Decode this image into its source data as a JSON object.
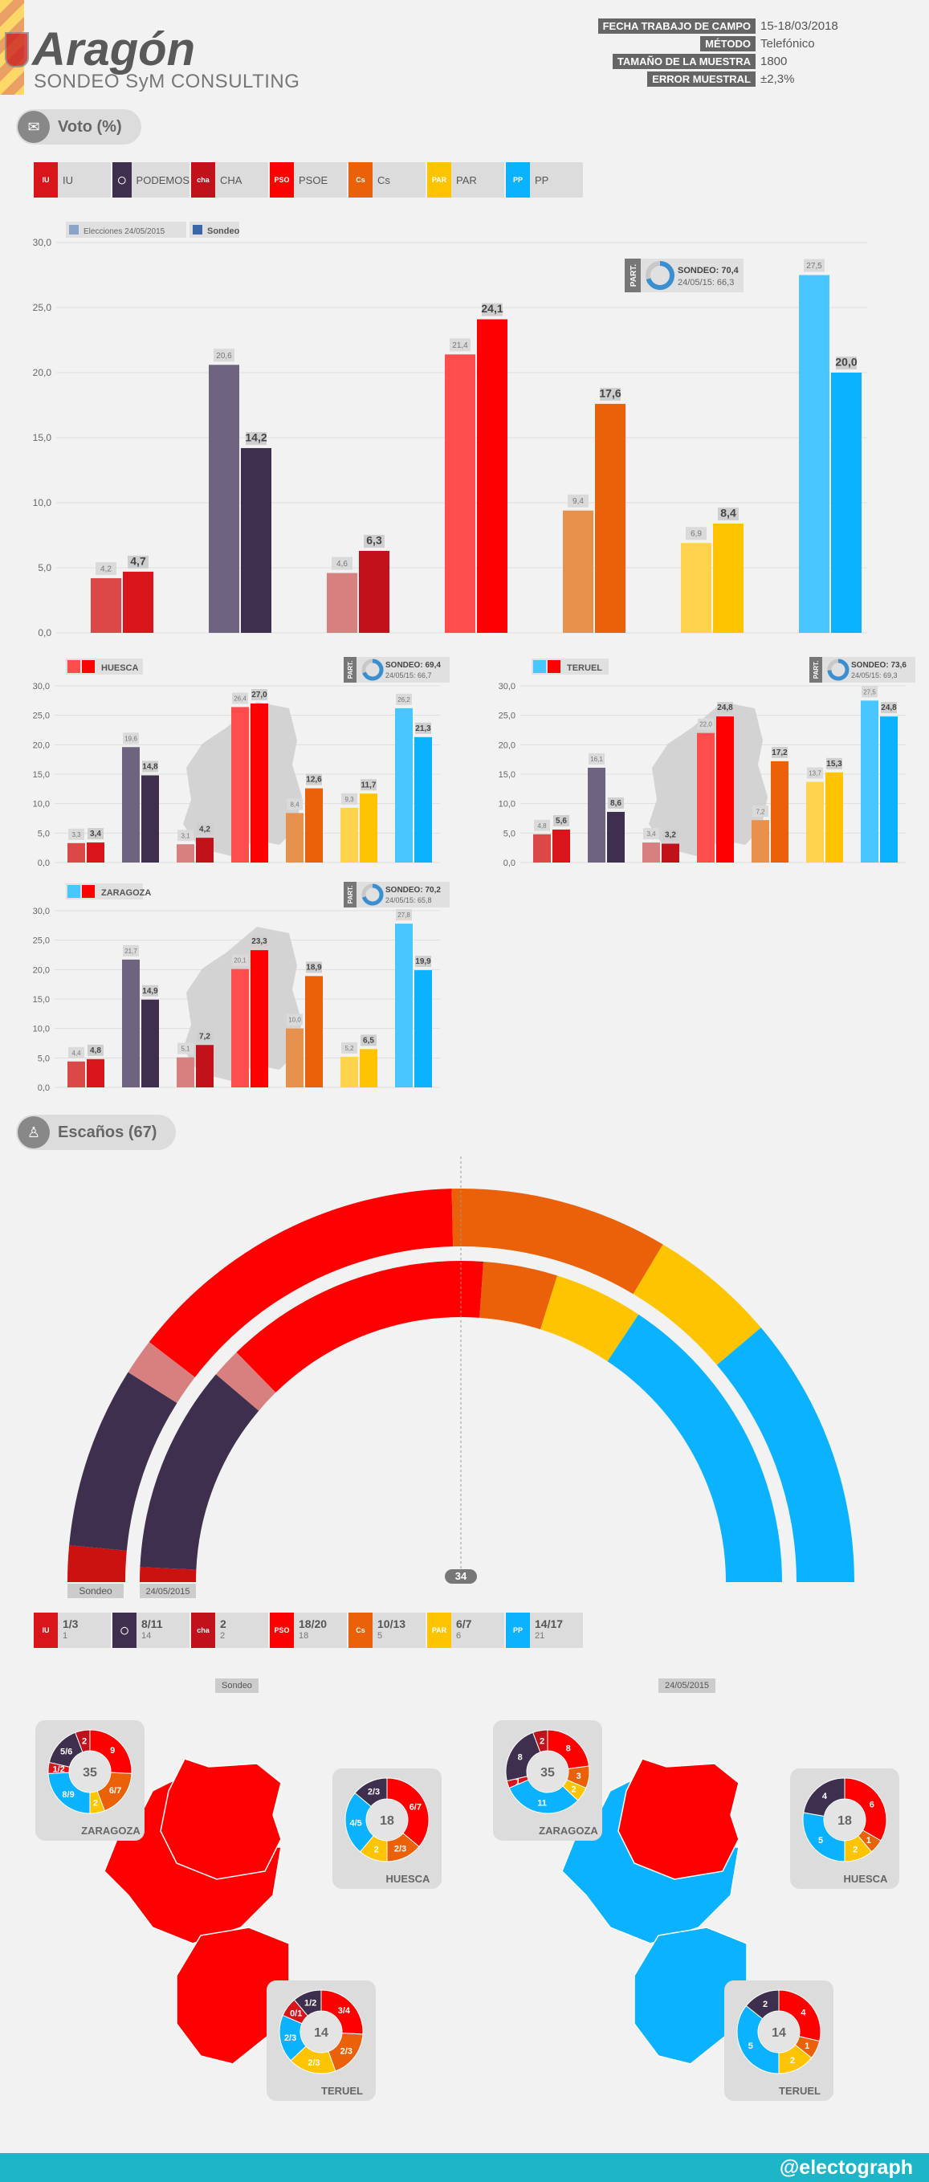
{
  "header": {
    "title": "Aragón",
    "subtitle": "SONDEO SyM CONSULTING",
    "meta": [
      {
        "label": "FECHA TRABAJO DE CAMPO",
        "value": "15-18/03/2018"
      },
      {
        "label": "MÉTODO",
        "value": "Telefónico"
      },
      {
        "label": "TAMAÑO DE LA MUESTRA",
        "value": "1800"
      },
      {
        "label": "ERROR MUESTRAL",
        "value": "±2,3%"
      }
    ]
  },
  "colors": {
    "IU": "#d7151a",
    "PODEMOS": "#3f2f4e",
    "CHA": "#c1121b",
    "PSOE": "#ff0000",
    "Cs": "#eb6109",
    "PAR": "#ffc400",
    "PP": "#0bb2ff",
    "IU_old": "#dc4848",
    "PODEMOS_old": "#6e6480",
    "CHA_old": "#d88080",
    "PSOE_old": "#ff4d4d",
    "Cs_old": "#e8914c",
    "PAR_old": "#ffd34d",
    "PP_old": "#47c6ff",
    "footer": "#1fb5c8"
  },
  "sections": {
    "vote": "Voto (%)",
    "seats": "Escaños (67)"
  },
  "parties": [
    "IU",
    "PODEMOS",
    "CHA",
    "PSOE",
    "Cs",
    "PAR",
    "PP"
  ],
  "party_logos": [
    "IU",
    "◯",
    "cha",
    "PSOE",
    "Cs",
    "PAR",
    "PP"
  ],
  "chart_data": [
    {
      "type": "bar",
      "region": "Aragón",
      "title": "Voto (%)",
      "categories": [
        "IU",
        "PODEMOS",
        "CHA",
        "PSOE",
        "Cs",
        "PAR",
        "PP"
      ],
      "series": [
        {
          "name": "Elecciones 24/05/2015",
          "values": [
            4.2,
            20.6,
            4.6,
            21.4,
            9.4,
            6.9,
            27.5
          ]
        },
        {
          "name": "Sondeo",
          "values": [
            4.7,
            14.2,
            6.3,
            24.1,
            17.6,
            8.4,
            20.0
          ]
        }
      ],
      "ylim": [
        0,
        30
      ],
      "yticks": [
        "0,0",
        "5,0",
        "10,0",
        "15,0",
        "20,0",
        "25,0",
        "30,0"
      ],
      "participation": {
        "tag": "PART.",
        "sondeo": "SONDEO: 70,4",
        "prev": "24/05/15: 66,3",
        "value": 70.4
      }
    },
    {
      "type": "bar",
      "region": "HUESCA",
      "categories": [
        "IU",
        "PODEMOS",
        "CHA",
        "PSOE",
        "Cs",
        "PAR",
        "PP"
      ],
      "series": [
        {
          "name": "Elecciones 24/05/2015",
          "values": [
            3.3,
            19.6,
            3.1,
            26.4,
            8.4,
            9.3,
            26.2
          ]
        },
        {
          "name": "Sondeo",
          "values": [
            3.4,
            14.8,
            4.2,
            27.0,
            12.6,
            11.7,
            21.3
          ]
        }
      ],
      "ylim": [
        0,
        30
      ],
      "participation": {
        "tag": "PART.",
        "sondeo": "SONDEO: 69,4",
        "prev": "24/05/15: 66,7",
        "value": 69.4
      }
    },
    {
      "type": "bar",
      "region": "TERUEL",
      "categories": [
        "IU",
        "PODEMOS",
        "CHA",
        "PSOE",
        "Cs",
        "PAR",
        "PP"
      ],
      "series": [
        {
          "name": "Elecciones 24/05/2015",
          "values": [
            4.8,
            16.1,
            3.4,
            22.0,
            7.2,
            13.7,
            27.5
          ]
        },
        {
          "name": "Sondeo",
          "values": [
            5.6,
            8.6,
            3.2,
            24.8,
            17.2,
            15.3,
            24.8
          ]
        }
      ],
      "ylim": [
        0,
        30
      ],
      "participation": {
        "tag": "PART.",
        "sondeo": "SONDEO: 73,6",
        "prev": "24/05/15: 69,3",
        "value": 73.6
      }
    },
    {
      "type": "bar",
      "region": "ZARAGOZA",
      "categories": [
        "IU",
        "PODEMOS",
        "CHA",
        "PSOE",
        "Cs",
        "PAR",
        "PP"
      ],
      "series": [
        {
          "name": "Elecciones 24/05/2015",
          "values": [
            4.4,
            21.7,
            5.1,
            20.1,
            10.0,
            5.2,
            27.8
          ]
        },
        {
          "name": "Sondeo",
          "values": [
            4.8,
            14.9,
            7.2,
            23.3,
            18.9,
            6.5,
            19.9
          ]
        }
      ],
      "ylim": [
        0,
        30
      ],
      "participation": {
        "tag": "PART.",
        "sondeo": "SONDEO: 70,2",
        "prev": "24/05/15: 65,8",
        "value": 70.2
      }
    }
  ],
  "legend": {
    "prev": "Elecciones 24/05/2015",
    "now": "Sondeo"
  },
  "hemicycle": {
    "total": 67,
    "majority": "34",
    "outer_label": "Sondeo",
    "inner_label": "24/05/2015",
    "outer": [
      {
        "party": "IU",
        "seats": 2
      },
      {
        "party": "PODEMOS",
        "seats": 10
      },
      {
        "party": "CHA",
        "seats": 2
      },
      {
        "party": "PSOE",
        "seats": 19
      },
      {
        "party": "Cs",
        "seats": 12
      },
      {
        "party": "PAR",
        "seats": 7
      },
      {
        "party": "PP",
        "seats": 15
      }
    ],
    "inner": [
      {
        "party": "IU",
        "seats": 1
      },
      {
        "party": "PODEMOS",
        "seats": 14
      },
      {
        "party": "CHA",
        "seats": 2
      },
      {
        "party": "PSOE",
        "seats": 18
      },
      {
        "party": "Cs",
        "seats": 5
      },
      {
        "party": "PAR",
        "seats": 6
      },
      {
        "party": "PP",
        "seats": 21
      }
    ]
  },
  "seat_chips": [
    {
      "party": "IU",
      "range": "1/3",
      "prev": "1"
    },
    {
      "party": "PODEMOS",
      "range": "8/11",
      "prev": "14"
    },
    {
      "party": "CHA",
      "range": "2",
      "prev": "2"
    },
    {
      "party": "PSOE",
      "range": "18/20",
      "prev": "18"
    },
    {
      "party": "Cs",
      "range": "10/13",
      "prev": "5"
    },
    {
      "party": "PAR",
      "range": "6/7",
      "prev": "6"
    },
    {
      "party": "PP",
      "range": "14/17",
      "prev": "21"
    }
  ],
  "maps": {
    "left_tag": "Sondeo",
    "right_tag": "24/05/2015",
    "left": [
      {
        "name": "ZARAGOZA",
        "total": "35",
        "slices": [
          {
            "party": "PSOE",
            "label": "9",
            "v": 9
          },
          {
            "party": "Cs",
            "label": "6/7",
            "v": 6.5
          },
          {
            "party": "PAR",
            "label": "2",
            "v": 2
          },
          {
            "party": "PP",
            "label": "8/9",
            "v": 8.5
          },
          {
            "party": "IU",
            "label": "1/2",
            "v": 1.5
          },
          {
            "party": "PODEMOS",
            "label": "5/6",
            "v": 5.5
          },
          {
            "party": "CHA",
            "label": "2",
            "v": 2
          }
        ]
      },
      {
        "name": "HUESCA",
        "total": "18",
        "slices": [
          {
            "party": "PSOE",
            "label": "6/7",
            "v": 6.5
          },
          {
            "party": "Cs",
            "label": "2/3",
            "v": 2.5
          },
          {
            "party": "PAR",
            "label": "2",
            "v": 2
          },
          {
            "party": "PP",
            "label": "4/5",
            "v": 4.5
          },
          {
            "party": "PODEMOS",
            "label": "2/3",
            "v": 2.5
          }
        ]
      },
      {
        "name": "TERUEL",
        "total": "14",
        "slices": [
          {
            "party": "PSOE",
            "label": "3/4",
            "v": 3.5
          },
          {
            "party": "Cs",
            "label": "2/3",
            "v": 2.5
          },
          {
            "party": "PAR",
            "label": "2/3",
            "v": 2.5
          },
          {
            "party": "PP",
            "label": "2/3",
            "v": 2.5
          },
          {
            "party": "IU",
            "label": "0/1",
            "v": 1
          },
          {
            "party": "PODEMOS",
            "label": "1/2",
            "v": 1.5
          }
        ]
      }
    ],
    "right": [
      {
        "name": "ZARAGOZA",
        "total": "35",
        "slices": [
          {
            "party": "PSOE",
            "label": "8",
            "v": 8
          },
          {
            "party": "Cs",
            "label": "3",
            "v": 3
          },
          {
            "party": "PAR",
            "label": "2",
            "v": 2
          },
          {
            "party": "PP",
            "label": "11",
            "v": 11
          },
          {
            "party": "IU",
            "label": "1",
            "v": 1
          },
          {
            "party": "PODEMOS",
            "label": "8",
            "v": 8
          },
          {
            "party": "CHA",
            "label": "2",
            "v": 2
          }
        ]
      },
      {
        "name": "HUESCA",
        "total": "18",
        "slices": [
          {
            "party": "PSOE",
            "label": "6",
            "v": 6
          },
          {
            "party": "Cs",
            "label": "1",
            "v": 1
          },
          {
            "party": "PAR",
            "label": "2",
            "v": 2
          },
          {
            "party": "PP",
            "label": "5",
            "v": 5
          },
          {
            "party": "PODEMOS",
            "label": "4",
            "v": 4
          }
        ]
      },
      {
        "name": "TERUEL",
        "total": "14",
        "slices": [
          {
            "party": "PSOE",
            "label": "4",
            "v": 4
          },
          {
            "party": "Cs",
            "label": "1",
            "v": 1
          },
          {
            "party": "PAR",
            "label": "2",
            "v": 2
          },
          {
            "party": "PP",
            "label": "5",
            "v": 5
          },
          {
            "party": "PODEMOS",
            "label": "2",
            "v": 2
          }
        ]
      }
    ]
  },
  "footer": {
    "handle": "@electograph"
  }
}
